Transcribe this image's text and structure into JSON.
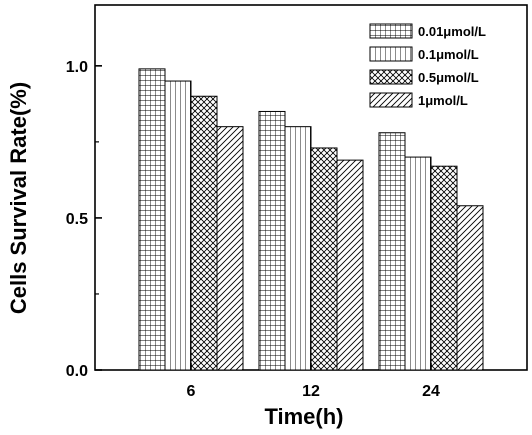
{
  "chart_data": {
    "type": "bar",
    "categories": [
      "6",
      "12",
      "24"
    ],
    "series": [
      {
        "name": "0.01μmol/L",
        "values": [
          0.99,
          0.85,
          0.78
        ],
        "pattern": "grid"
      },
      {
        "name": "0.1μmol/L",
        "values": [
          0.95,
          0.8,
          0.7
        ],
        "pattern": "vertical-lines"
      },
      {
        "name": "0.5μmol/L",
        "values": [
          0.9,
          0.73,
          0.67
        ],
        "pattern": "crosshatch"
      },
      {
        "name": "1μmol/L",
        "values": [
          0.8,
          0.69,
          0.54
        ],
        "pattern": "diagonal"
      }
    ],
    "xlabel": "Time(h)",
    "ylabel": "Cells Survival Rate(%)",
    "ylim": [
      0,
      1.2
    ],
    "yticks": [
      0.0,
      0.5,
      1.0
    ],
    "ytick_labels": [
      "0.0",
      "0.5",
      "1.0"
    ],
    "legend_position": "top-right",
    "grid": false,
    "bar_color": "#000000",
    "background": "#ffffff"
  }
}
